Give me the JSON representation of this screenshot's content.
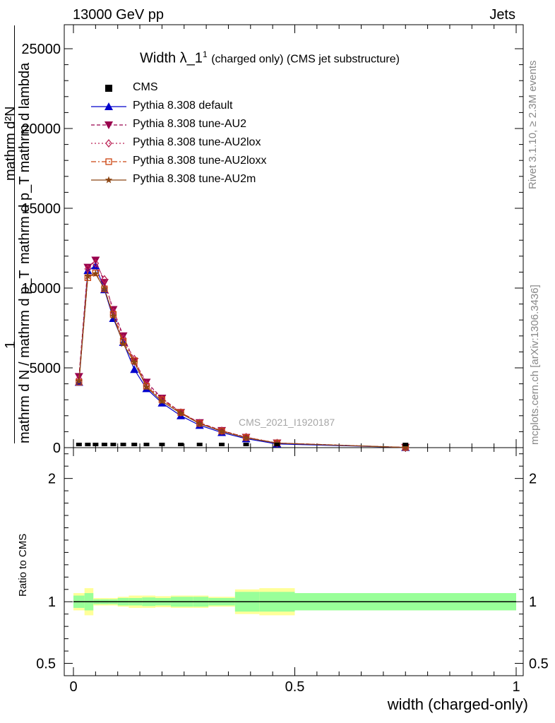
{
  "header": {
    "left": "13000 GeV pp",
    "right": "Jets"
  },
  "side_text": {
    "rivet": "Rivet 3.1.10, ≥ 2.3M events",
    "mcplots": "mcplots.cern.ch [arXiv:1306.3436]"
  },
  "chart_data": [
    {
      "type": "line",
      "title": "Width λ_1¹ (charged only) (CMS jet substructure)",
      "title_main": "Width λ_1",
      "title_sup": "1",
      "title_rest": "(charged only) (CMS jet substructure)",
      "watermark": "CMS_2021_I1920187",
      "ylabel_line1": "mathrm d²N",
      "ylabel_line2": "mathrm d p_T mathrm d lambda",
      "ylabel_line3": "1",
      "ylabel_line4": "mathrm d N / mathrm d p_T",
      "xlim": [
        0,
        1
      ],
      "ylim": [
        0,
        25000
      ],
      "yticks": [
        {
          "value": 0,
          "label": "0"
        },
        {
          "value": 5000,
          "label": "5000"
        },
        {
          "value": 10000,
          "label": "10000"
        },
        {
          "value": 15000,
          "label": "15000"
        },
        {
          "value": 20000,
          "label": "20000"
        },
        {
          "value": 25000,
          "label": "25000"
        }
      ],
      "x": [
        0.0125,
        0.0325,
        0.05,
        0.07,
        0.09,
        0.1125,
        0.1375,
        0.165,
        0.2,
        0.2425,
        0.285,
        0.335,
        0.39,
        0.46,
        0.75
      ],
      "series": [
        {
          "name": "CMS",
          "color": "#000000",
          "marker": "square",
          "dash": "",
          "values": [
            50,
            50,
            50,
            50,
            50,
            50,
            50,
            50,
            50,
            50,
            50,
            50,
            50,
            50,
            50
          ]
        },
        {
          "name": "Pythia 8.308 default",
          "color": "#0000cc",
          "marker": "triangle-up",
          "dash": "",
          "values": [
            4100,
            11100,
            11400,
            9900,
            8100,
            6600,
            4900,
            3700,
            2800,
            2000,
            1400,
            950,
            560,
            230,
            12
          ]
        },
        {
          "name": "Pythia 8.308 tune-AU2",
          "color": "#99004d",
          "marker": "triangle-down",
          "dash": "5,3",
          "values": [
            4450,
            11300,
            11750,
            10350,
            8650,
            7000,
            5400,
            4100,
            3100,
            2200,
            1560,
            1070,
            640,
            290,
            12
          ]
        },
        {
          "name": "Pythia 8.308 tune-AU2lox",
          "color": "#bb2255",
          "marker": "diamond",
          "dash": "2,3",
          "values": [
            4300,
            11200,
            11550,
            10550,
            8500,
            6850,
            5550,
            3950,
            3050,
            2200,
            1540,
            1060,
            660,
            290,
            12
          ]
        },
        {
          "name": "Pythia 8.308 tune-AU2loxx",
          "color": "#cc4411",
          "marker": "square-open",
          "dash": "7,3,2,3",
          "values": [
            4100,
            10650,
            10950,
            9950,
            8350,
            6650,
            5450,
            3850,
            3000,
            2200,
            1520,
            1040,
            640,
            290,
            12
          ]
        },
        {
          "name": "Pythia 8.308 tune-AU2m",
          "color": "#8b4513",
          "marker": "star",
          "dash": "",
          "values": [
            4150,
            10750,
            10900,
            9950,
            8250,
            6500,
            5350,
            3800,
            2900,
            2150,
            1500,
            1020,
            620,
            280,
            12
          ]
        }
      ]
    },
    {
      "type": "area",
      "ylabel": "Ratio to CMS",
      "xlabel": "width (charged-only)",
      "xlim": [
        0,
        1
      ],
      "ylim": [
        0.4,
        2.25
      ],
      "xticks": [
        {
          "value": 0,
          "label": "0"
        },
        {
          "value": 0.5,
          "label": "0.5"
        },
        {
          "value": 1,
          "label": "1"
        }
      ],
      "yticks": [
        {
          "value": 0.5,
          "label": "0.5"
        },
        {
          "value": 1,
          "label": "1"
        },
        {
          "value": 2,
          "label": "2"
        }
      ],
      "reference_line": 1.0,
      "bins": [
        0,
        0.025,
        0.045,
        0.06,
        0.08,
        0.1,
        0.125,
        0.155,
        0.185,
        0.22,
        0.27,
        0.305,
        0.365,
        0.42,
        0.5,
        1.0
      ],
      "band_inner": [
        0.05,
        0.07,
        0.02,
        0.02,
        0.02,
        0.03,
        0.03,
        0.035,
        0.03,
        0.04,
        0.04,
        0.03,
        0.08,
        0.08,
        0.07
      ],
      "band_outer": [
        0.07,
        0.11,
        0.03,
        0.03,
        0.03,
        0.04,
        0.05,
        0.05,
        0.045,
        0.05,
        0.05,
        0.04,
        0.1,
        0.11,
        0.07
      ],
      "band_inner_color": "#99ff99",
      "band_outer_color": "#ffff99"
    }
  ]
}
